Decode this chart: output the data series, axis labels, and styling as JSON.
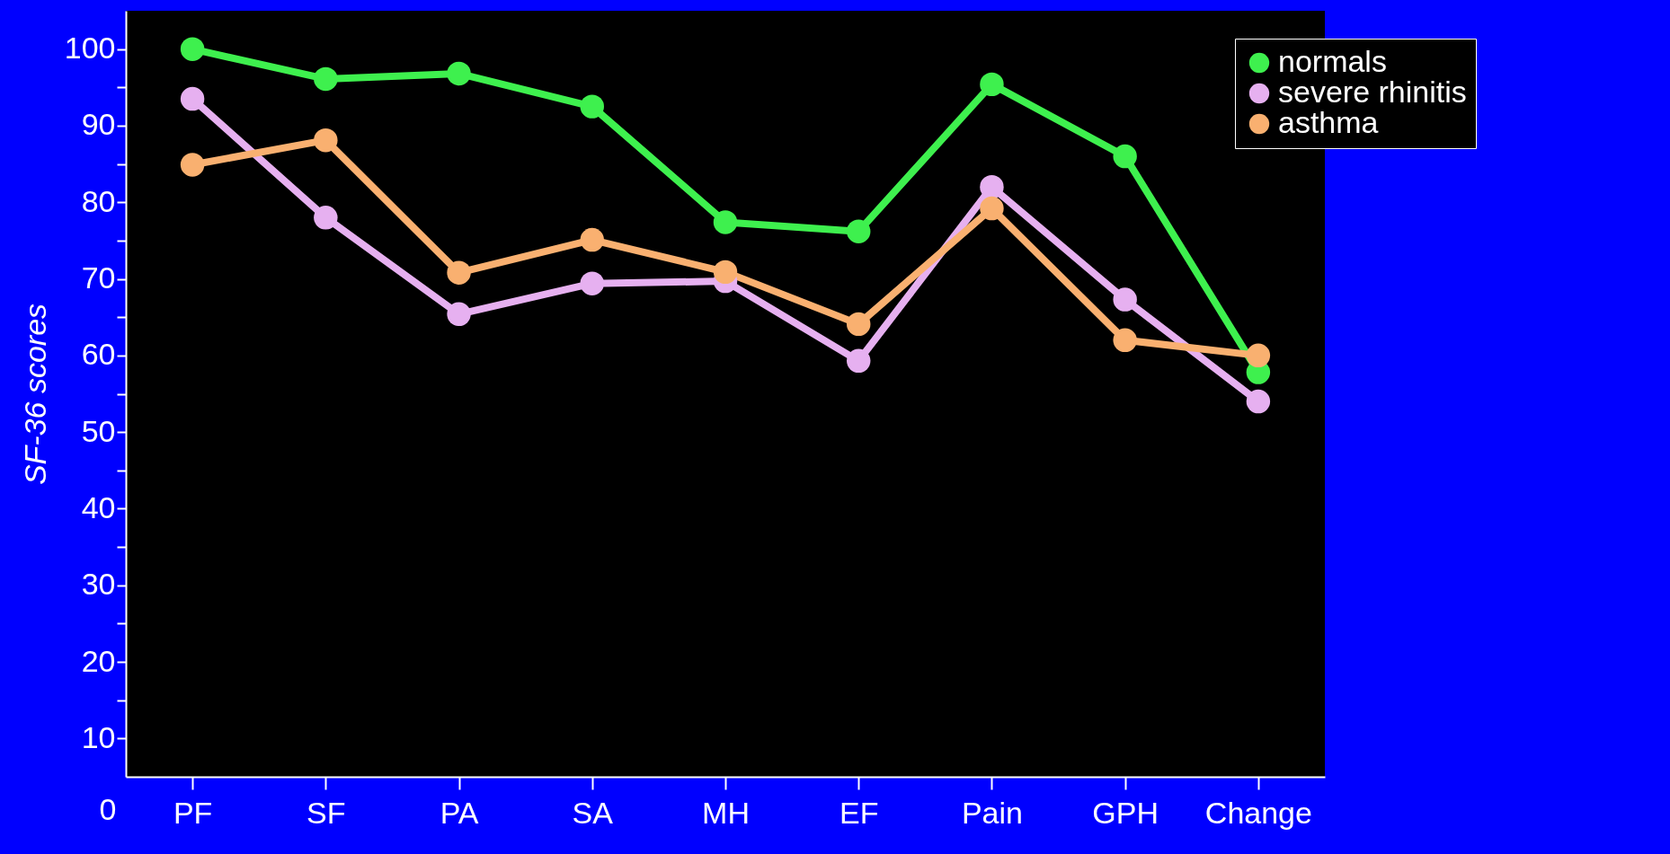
{
  "chart_data": {
    "type": "line",
    "ylabel": "SF-36 scores",
    "categories": [
      "PF",
      "SF",
      "PA",
      "SA",
      "MH",
      "EF",
      "Pain",
      "GPH",
      "Change"
    ],
    "series": [
      {
        "name": "normals",
        "color": "#3ef04e",
        "values": [
          100,
          96.1,
          96.8,
          92.5,
          77.4,
          76.2,
          95.4,
          86.0,
          57.8
        ]
      },
      {
        "name": "severe rhinitis",
        "color": "#e6b0f0",
        "values": [
          93.5,
          78.0,
          65.4,
          69.4,
          69.7,
          59.3,
          82.0,
          67.3,
          54.0
        ]
      },
      {
        "name": "asthma",
        "color": "#f9b070",
        "values": [
          84.9,
          88.1,
          70.8,
          75.1,
          70.9,
          64.1,
          79.2,
          62.0,
          60.0
        ]
      }
    ],
    "ylim": [
      5,
      105
    ],
    "yticks": [
      10,
      {
        "value": 15,
        "label": null
      },
      20,
      {
        "value": 25,
        "label": null
      },
      30,
      {
        "value": 35,
        "label": null
      },
      40,
      {
        "value": 45,
        "label": null
      },
      50,
      {
        "value": 55,
        "label": null
      },
      60,
      {
        "value": 65,
        "label": null
      },
      70,
      {
        "value": 75,
        "label": null
      },
      80,
      {
        "value": 85,
        "label": null
      },
      90,
      {
        "value": 95,
        "label": null
      },
      100
    ],
    "annotations": [
      "0"
    ],
    "grid": false,
    "legend": "top right",
    "marker": "circle",
    "line_style": "solid"
  }
}
